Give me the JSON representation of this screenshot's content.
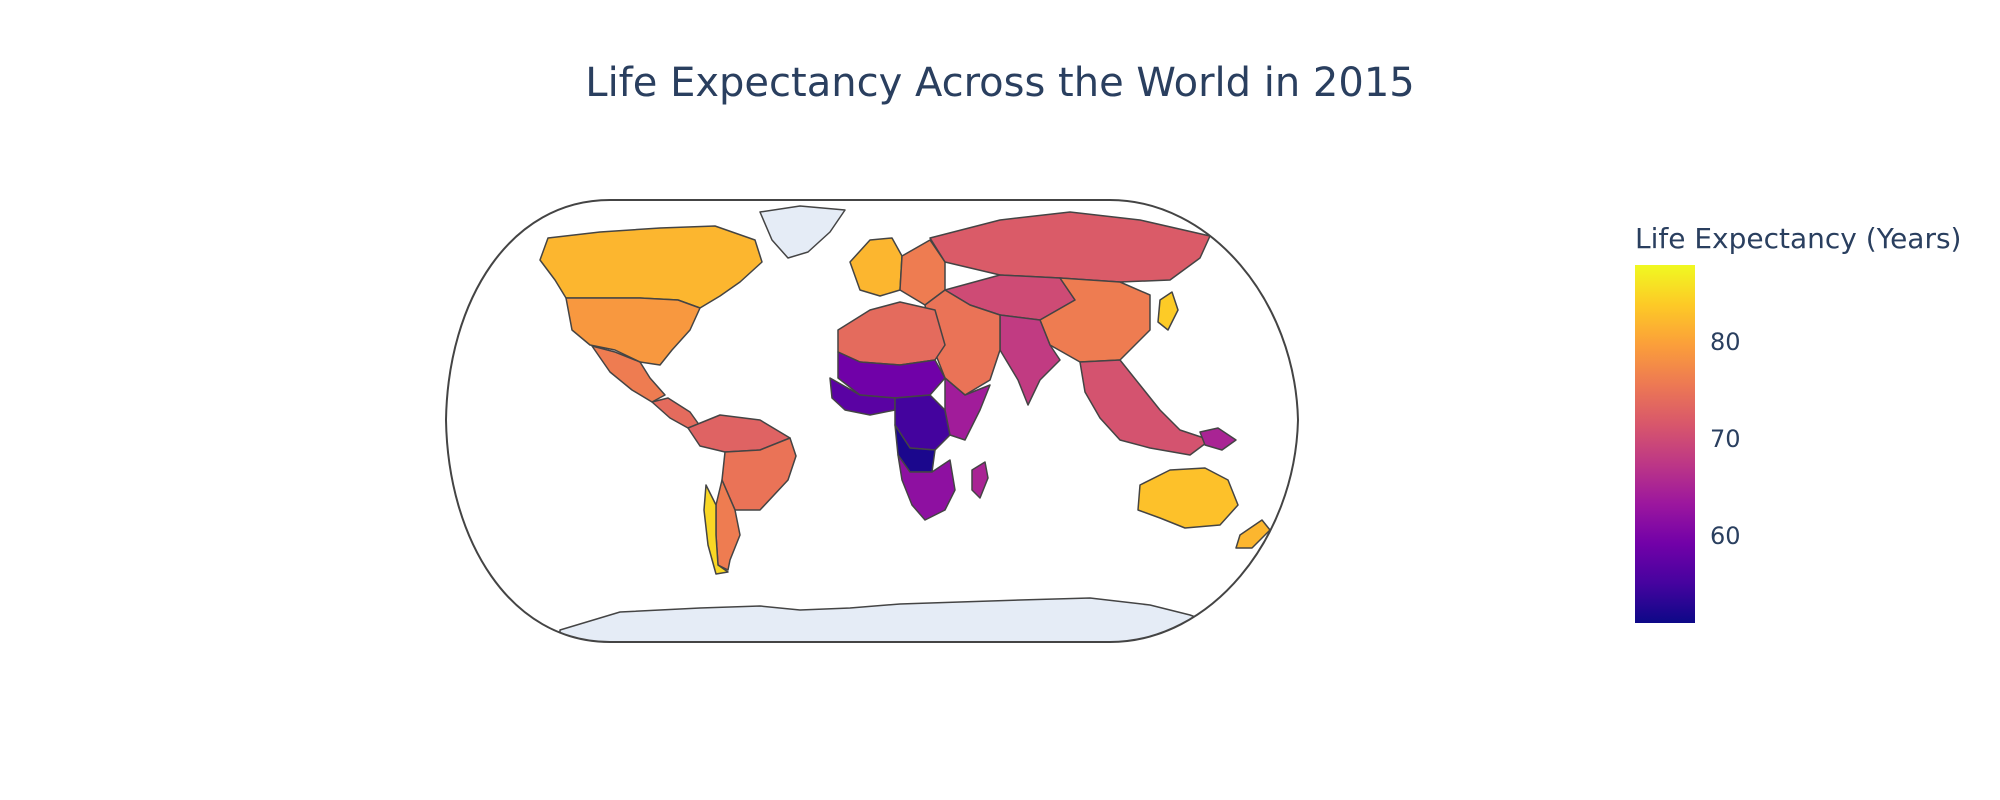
{
  "title": "Life Expectancy Across the World in 2015",
  "colorbar": {
    "title": "Life Expectancy (Years)",
    "ticks": [
      {
        "label": "80",
        "value": 80
      },
      {
        "label": "70",
        "value": 70
      },
      {
        "label": "60",
        "value": 60
      }
    ],
    "range": [
      51,
      88
    ],
    "colorscale": [
      "#0d0887",
      "#46039f",
      "#7201a8",
      "#9c179e",
      "#bd3786",
      "#d8576b",
      "#ed7953",
      "#fb9f3a",
      "#fdca26",
      "#f0f921"
    ]
  },
  "colors": {
    "land_no_data": "#e5ecf6",
    "border": "#444444",
    "text": "#2a3f5f"
  },
  "chart_data": {
    "type": "choropleth",
    "projection": "natural earth",
    "title": "Life Expectancy Across the World in 2015",
    "colorbar_title": "Life Expectancy (Years)",
    "zrange": [
      51,
      88
    ],
    "regions": [
      {
        "name": "Canada",
        "value": 82
      },
      {
        "name": "United States",
        "value": 79
      },
      {
        "name": "Greenland",
        "value": null
      },
      {
        "name": "Mexico",
        "value": 76
      },
      {
        "name": "Central America",
        "value": 74
      },
      {
        "name": "South America (north)",
        "value": 73
      },
      {
        "name": "Brazil",
        "value": 75
      },
      {
        "name": "Argentina",
        "value": 76
      },
      {
        "name": "Chile",
        "value": 85
      },
      {
        "name": "Western Europe",
        "value": 82
      },
      {
        "name": "Eastern Europe",
        "value": 76
      },
      {
        "name": "Russia",
        "value": 72
      },
      {
        "name": "Central Asia",
        "value": 70
      },
      {
        "name": "China",
        "value": 76
      },
      {
        "name": "Japan",
        "value": 84
      },
      {
        "name": "South Asia",
        "value": 68
      },
      {
        "name": "Southeast Asia",
        "value": 71
      },
      {
        "name": "Middle East",
        "value": 75
      },
      {
        "name": "North Africa",
        "value": 74
      },
      {
        "name": "Sahel",
        "value": 59
      },
      {
        "name": "West Africa",
        "value": 57
      },
      {
        "name": "Central Africa",
        "value": 55
      },
      {
        "name": "Angola",
        "value": 52
      },
      {
        "name": "East Africa",
        "value": 64
      },
      {
        "name": "Southern Africa",
        "value": 62
      },
      {
        "name": "Madagascar",
        "value": 65
      },
      {
        "name": "Australia",
        "value": 83
      },
      {
        "name": "New Zealand",
        "value": 82
      },
      {
        "name": "Papua New Guinea",
        "value": 65
      },
      {
        "name": "Antarctica",
        "value": null
      }
    ]
  }
}
